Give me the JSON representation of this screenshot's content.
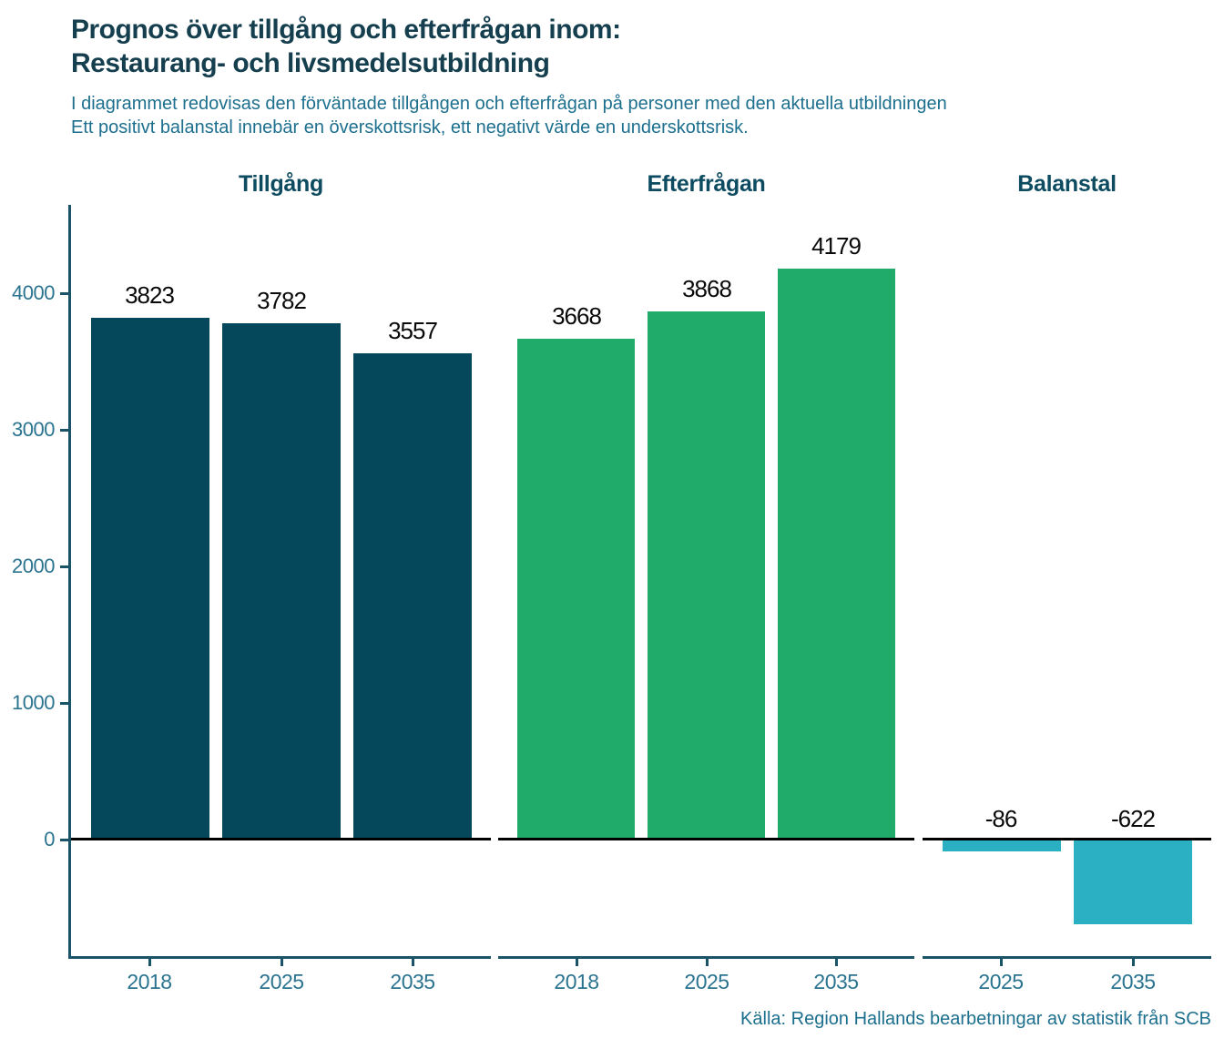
{
  "title": {
    "line1": "Prognos över tillgång och efterfrågan inom:",
    "line2": "Restaurang- och livsmedelsutbildning"
  },
  "subtitle": {
    "line1": "I diagrammet redovisas den förväntade tillgången och efterfrågan på personer med den aktuella utbildningen",
    "line2": "Ett positivt balanstal innebär en överskottsrisk, ett negativt värde en underskottsrisk."
  },
  "source": "Källa: Region Hallands bearbetningar av statistik från SCB",
  "colors": {
    "title_text": "#153f4e",
    "subtitle_text": "#1d6f8e",
    "panel_header_text": "#0d4b60",
    "axis_line": "#1b5468",
    "tick_label_text": "#2b7490",
    "value_label_text": "#0a0a0a",
    "zero_line": "#000000"
  },
  "chart_data": {
    "type": "bar",
    "title": "Prognos över tillgång och efterfrågan inom: Restaurang- och livsmedelsutbildning",
    "panels": [
      {
        "title": "Tillgång",
        "color": "#05485c",
        "categories": [
          "2018",
          "2025",
          "2035"
        ],
        "values": [
          3823,
          3782,
          3557
        ]
      },
      {
        "title": "Efterfrågan",
        "color": "#21ab6b",
        "categories": [
          "2018",
          "2025",
          "2035"
        ],
        "values": [
          3668,
          3868,
          4179
        ]
      },
      {
        "title": "Balanstal",
        "color": "#2bb0c3",
        "categories": [
          "2025",
          "2035"
        ],
        "values": [
          -86,
          -622
        ]
      }
    ],
    "y_axis": {
      "ticks": [
        0,
        1000,
        2000,
        3000,
        4000
      ],
      "range": [
        -850,
        4650
      ]
    },
    "xlabel": "",
    "ylabel": "",
    "grid": false,
    "legend": "none",
    "value_labels_shown": true
  }
}
